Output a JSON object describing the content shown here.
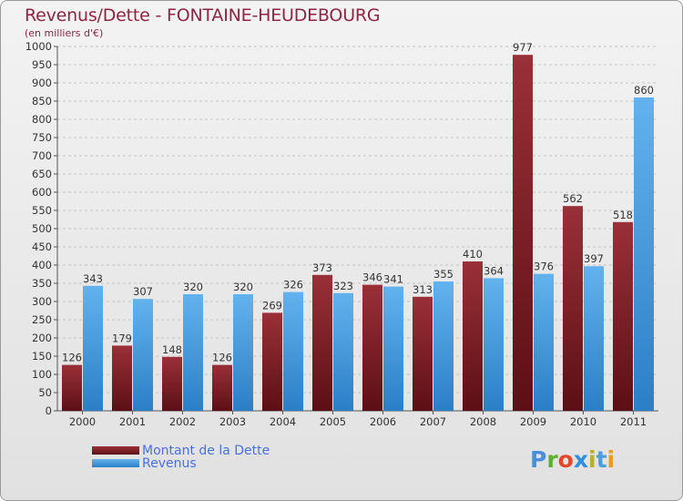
{
  "title": "Revenus/Dette - FONTAINE-HEUDEBOURG",
  "subtitle": "(en milliers d'€)",
  "logo": {
    "text": "Proxiti",
    "letter_colors": [
      "#4a8fd8",
      "#5fae2f",
      "#e6462b",
      "#2f8fdd",
      "#b6b02a",
      "#4c9de0",
      "#e89d1d"
    ]
  },
  "colors": {
    "dette": "#7b1c24",
    "dette_light": "#9a3038",
    "revenus": "#3d94dc",
    "revenus_light": "#62b2ee",
    "axis_text": "#333333",
    "grid": "#c5c5c5",
    "value_label": "#333333"
  },
  "chart_data": {
    "type": "bar",
    "categories": [
      "2000",
      "2001",
      "2002",
      "2003",
      "2004",
      "2005",
      "2006",
      "2007",
      "2008",
      "2009",
      "2010",
      "2011"
    ],
    "series": [
      {
        "name": "Montant de la Dette",
        "values": [
          126,
          179,
          148,
          126,
          269,
          373,
          346,
          313,
          410,
          977,
          562,
          518
        ]
      },
      {
        "name": "Revenus",
        "values": [
          343,
          307,
          320,
          320,
          326,
          323,
          341,
          355,
          364,
          376,
          397,
          860
        ]
      }
    ],
    "ylim": [
      0,
      1000
    ],
    "yticks": [
      0,
      50,
      100,
      150,
      200,
      250,
      300,
      350,
      400,
      450,
      500,
      550,
      600,
      650,
      700,
      750,
      800,
      850,
      900,
      950,
      1000
    ],
    "grid": true,
    "legend_position": "bottom-left",
    "xlabel": "",
    "ylabel": ""
  }
}
